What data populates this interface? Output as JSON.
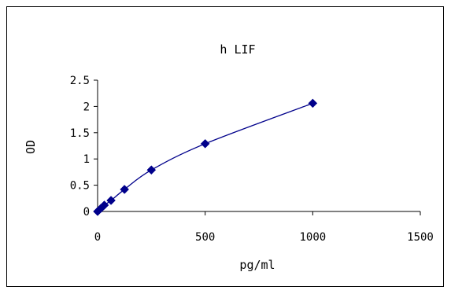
{
  "chart_data": {
    "type": "line",
    "title": "h LIF",
    "xlabel": "pg/ml",
    "ylabel": "OD",
    "xlim": [
      0,
      1500
    ],
    "ylim": [
      0,
      2.5
    ],
    "x_ticks": [
      0,
      500,
      1000,
      1500
    ],
    "x_tick_labels": [
      "0",
      "500",
      "1000",
      "1500"
    ],
    "y_ticks": [
      0,
      0.5,
      1,
      1.5,
      2,
      2.5
    ],
    "y_tick_labels": [
      "0",
      "0.5",
      "1",
      "1.5",
      "2",
      "2.5"
    ],
    "grid": false,
    "legend": "none",
    "series": [
      {
        "color": "#00008B",
        "marker": "diamond",
        "x": [
          0,
          15.6,
          31.25,
          62.5,
          125,
          250,
          500,
          1000
        ],
        "y": [
          0.0,
          0.06,
          0.12,
          0.21,
          0.42,
          0.79,
          1.29,
          2.06
        ]
      }
    ]
  }
}
